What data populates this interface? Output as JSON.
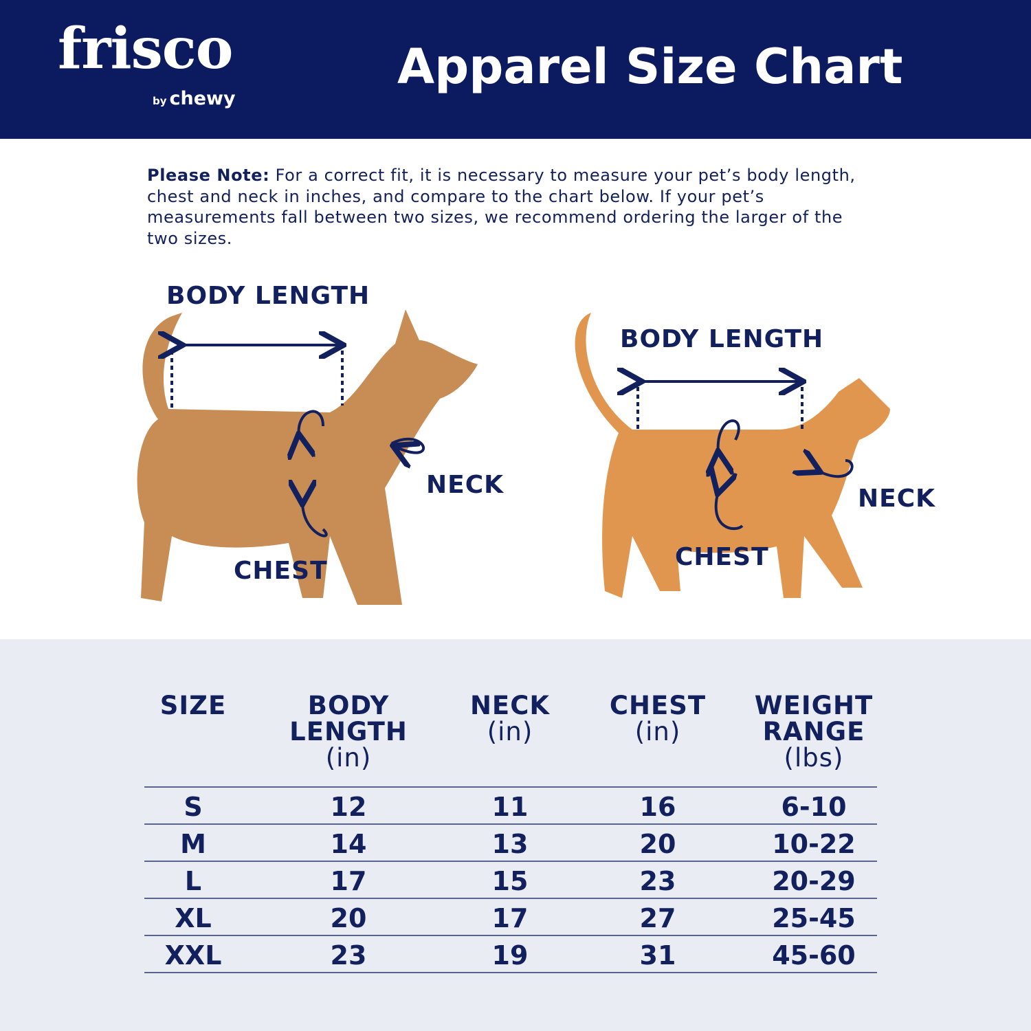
{
  "header": {
    "brand": "frisco",
    "brand_sub_by": "by",
    "brand_sub": "chewy",
    "title": "Apparel Size Chart",
    "bg_color": "#0c1a5f"
  },
  "note": {
    "label": "Please Note:",
    "text": " For a correct fit, it is necessary to measure your pet’s body length, chest and neck in inches, and compare to the chart below. If your pet’s measurements fall between two sizes, we recommend ordering the larger of the two sizes."
  },
  "illustration": {
    "dog": {
      "body_length": "BODY LENGTH",
      "neck": "NECK",
      "chest": "CHEST"
    },
    "cat": {
      "body_length": "BODY LENGTH",
      "neck": "NECK",
      "chest": "CHEST"
    }
  },
  "table": {
    "headers": [
      {
        "title": "SIZE",
        "unit": ""
      },
      {
        "title": "BODY LENGTH",
        "unit": "(in)"
      },
      {
        "title": "NECK",
        "unit": "(in)"
      },
      {
        "title": "CHEST",
        "unit": "(in)"
      },
      {
        "title": "WEIGHT RANGE",
        "unit": "(lbs)"
      }
    ],
    "rows": [
      [
        "S",
        "12",
        "11",
        "16",
        "6-10"
      ],
      [
        "M",
        "14",
        "13",
        "20",
        "10-22"
      ],
      [
        "L",
        "17",
        "15",
        "23",
        "20-29"
      ],
      [
        "XL",
        "20",
        "17",
        "27",
        "25-45"
      ],
      [
        "XXL",
        "23",
        "19",
        "31",
        "45-60"
      ]
    ]
  }
}
